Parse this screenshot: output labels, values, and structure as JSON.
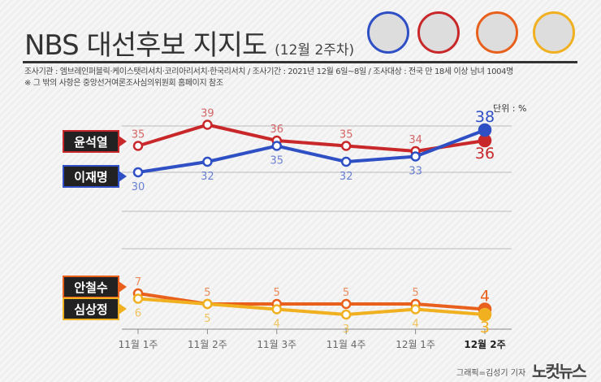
{
  "header": {
    "title": "NBS 대선후보 지지도",
    "subtitle": "(12월 2주차)",
    "source": "조사기관 : 엠브레인퍼블릭·케이스탯리서치·코리아리서치·한국리서치 / 조사기간 : 2021년 12월 6일~8일 / 조사대상 : 전국 만 18세 이상 남녀 1004명",
    "note": "※ 그 밖의 사항은 중앙선거여론조사심의위원회 홈페이지 참조"
  },
  "photos": [
    {
      "name": "이재명",
      "color": "#2f4fc4"
    },
    {
      "name": "윤석열",
      "color": "#c8282a"
    },
    {
      "name": "안철수",
      "color": "#e8601c"
    },
    {
      "name": "심상정",
      "color": "#f0b020"
    }
  ],
  "footer": {
    "credit": "그래픽=김성기 기자",
    "logo": "노컷뉴스"
  },
  "chart_data": {
    "type": "line",
    "unit_label": "단위 : %",
    "categories": [
      "11월 1주",
      "11월 2주",
      "11월 3주",
      "11월 4주",
      "12월 1주",
      "12월 2주"
    ],
    "series": [
      {
        "name": "윤석열",
        "color": "#c8282a",
        "values": [
          35,
          39,
          36,
          35,
          34,
          36
        ]
      },
      {
        "name": "이재명",
        "color": "#2f4fc4",
        "values": [
          30,
          32,
          35,
          32,
          33,
          38
        ]
      },
      {
        "name": "안철수",
        "color": "#e8601c",
        "values": [
          7,
          5,
          5,
          5,
          5,
          4
        ]
      },
      {
        "name": "심상정",
        "color": "#f0b020",
        "values": [
          6,
          5,
          4,
          3,
          4,
          3
        ]
      }
    ],
    "axis_break": true,
    "grid": true
  }
}
